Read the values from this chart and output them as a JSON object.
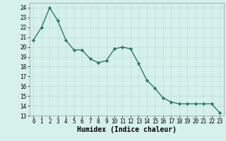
{
  "x": [
    0,
    1,
    2,
    3,
    4,
    5,
    6,
    7,
    8,
    9,
    10,
    11,
    12,
    13,
    14,
    15,
    16,
    17,
    18,
    19,
    20,
    21,
    22,
    23
  ],
  "y": [
    20.7,
    22.0,
    24.0,
    22.7,
    20.7,
    19.7,
    19.7,
    18.8,
    18.4,
    18.6,
    19.8,
    20.0,
    19.8,
    18.3,
    16.6,
    15.8,
    14.8,
    14.4,
    14.2,
    14.2,
    14.2,
    14.2,
    14.2,
    13.3
  ],
  "line_color": "#2d7a65",
  "marker": "D",
  "marker_size": 2.2,
  "bg_color": "#d6f0ec",
  "grid_color": "#b8ddd8",
  "xlabel": "Humidex (Indice chaleur)",
  "ylim": [
    13,
    24.5
  ],
  "xlim": [
    -0.5,
    23.5
  ],
  "yticks": [
    13,
    14,
    15,
    16,
    17,
    18,
    19,
    20,
    21,
    22,
    23,
    24
  ],
  "xticks": [
    0,
    1,
    2,
    3,
    4,
    5,
    6,
    7,
    8,
    9,
    10,
    11,
    12,
    13,
    14,
    15,
    16,
    17,
    18,
    19,
    20,
    21,
    22,
    23
  ],
  "tick_fontsize": 5.5,
  "xlabel_fontsize": 7.0,
  "line_width": 1.0
}
